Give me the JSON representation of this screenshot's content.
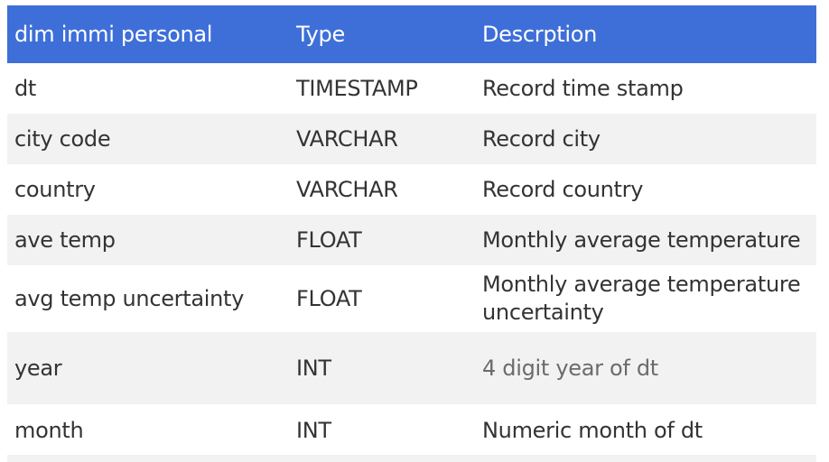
{
  "table": {
    "headers": [
      "dim immi personal",
      "Type",
      "Descrption"
    ],
    "rows": [
      {
        "name": "dt",
        "type": "TIMESTAMP",
        "description": "Record time stamp"
      },
      {
        "name": "city code",
        "type": "VARCHAR",
        "description": "Record city"
      },
      {
        "name": "country",
        "type": "VARCHAR",
        "description": "Record country"
      },
      {
        "name": "ave temp",
        "type": "FLOAT",
        "description": "Monthly average temperature"
      },
      {
        "name": "avg temp uncertainty",
        "type": "FLOAT",
        "description": "Monthly average temperature uncertainty"
      },
      {
        "name": "year",
        "type": "INT",
        "description": "4 digit year of dt"
      },
      {
        "name": "month",
        "type": "INT",
        "description": "Numeric month of dt"
      }
    ]
  },
  "colors": {
    "header_bg": "#3e6fd8",
    "header_text": "#ffffff",
    "stripe": "#f2f2f2"
  }
}
